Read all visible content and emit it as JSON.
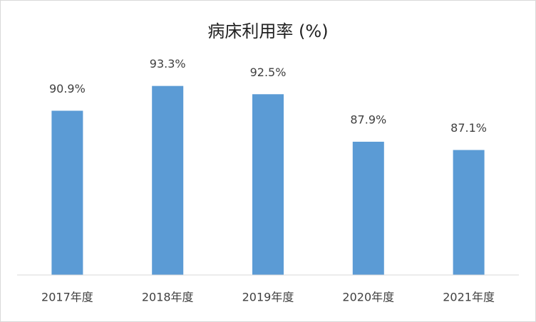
{
  "chart_data": {
    "type": "bar",
    "title": "病床利用率 (%)",
    "categories": [
      "2017年度",
      "2018年度",
      "2019年度",
      "2020年度",
      "2021年度"
    ],
    "values": [
      90.9,
      93.3,
      92.5,
      87.9,
      87.1
    ],
    "value_labels": [
      "90.9%",
      "93.3%",
      "92.5%",
      "87.9%",
      "87.1%"
    ],
    "color": "#5b9bd5",
    "ylim": [
      75,
      95
    ]
  }
}
